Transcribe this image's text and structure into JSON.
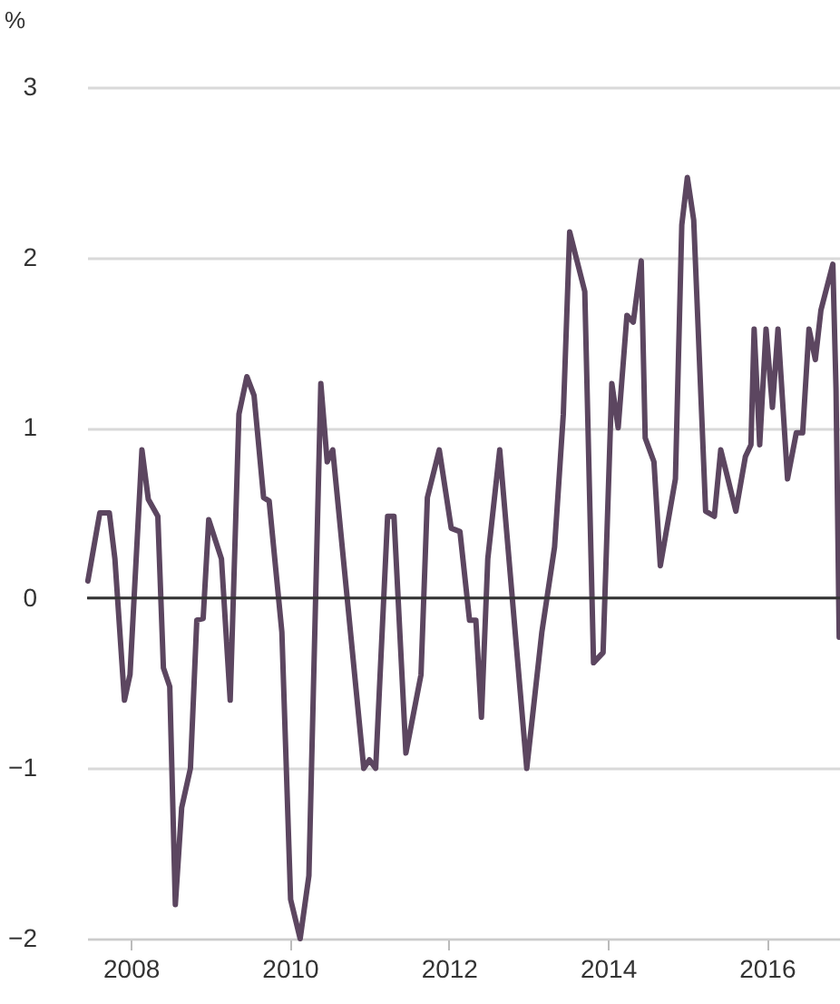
{
  "chart_data": {
    "type": "line",
    "ylabel": "%",
    "x": [
      2007.46,
      2007.61,
      2007.73,
      2007.8,
      2007.92,
      2007.99,
      2008.14,
      2008.22,
      2008.34,
      2008.41,
      2008.49,
      2008.56,
      2008.64,
      2008.75,
      2008.83,
      2008.91,
      2008.98,
      2009.14,
      2009.25,
      2009.36,
      2009.46,
      2009.55,
      2009.67,
      2009.74,
      2009.9,
      2010.01,
      2010.13,
      2010.24,
      2010.39,
      2010.47,
      2010.54,
      2010.93,
      2011.0,
      2011.08,
      2011.23,
      2011.31,
      2011.46,
      2011.65,
      2011.73,
      2011.88,
      2012.03,
      2012.14,
      2012.26,
      2012.34,
      2012.41,
      2012.49,
      2012.64,
      2012.98,
      2013.17,
      2013.33,
      2013.44,
      2013.52,
      2013.71,
      2013.82,
      2013.94,
      2014.05,
      2014.13,
      2014.24,
      2014.32,
      2014.42,
      2014.47,
      2014.58,
      2014.66,
      2014.85,
      2014.93,
      2015.0,
      2015.08,
      2015.23,
      2015.34,
      2015.42,
      2015.5,
      2015.61,
      2015.73,
      2015.8,
      2015.84,
      2015.91,
      2015.99,
      2016.07,
      2016.14,
      2016.26,
      2016.37,
      2016.45,
      2016.53,
      2016.61,
      2016.68,
      2016.83,
      2016.87,
      2016.91
    ],
    "series": [
      {
        "color": "#5c4660",
        "values": [
          0.1,
          0.5,
          0.5,
          0.23,
          -0.6,
          -0.45,
          0.87,
          0.58,
          0.48,
          -0.41,
          -0.52,
          -1.8,
          -1.23,
          -1.0,
          -0.13,
          -0.12,
          0.46,
          0.23,
          -0.6,
          1.08,
          1.3,
          1.19,
          0.59,
          0.57,
          -0.2,
          -1.77,
          -2.0,
          -1.63,
          1.26,
          0.8,
          0.87,
          -1.0,
          -0.95,
          -1.0,
          0.48,
          0.48,
          -0.91,
          -0.45,
          0.59,
          0.87,
          0.41,
          0.39,
          -0.13,
          -0.13,
          -0.7,
          0.23,
          0.87,
          -1.0,
          -0.2,
          0.3,
          1.08,
          2.15,
          1.8,
          -0.38,
          -0.32,
          1.26,
          1.0,
          1.66,
          1.62,
          1.98,
          0.94,
          0.8,
          0.19,
          0.7,
          2.19,
          2.47,
          2.22,
          0.51,
          0.48,
          0.87,
          0.72,
          0.51,
          0.83,
          0.9,
          1.58,
          0.9,
          1.58,
          1.12,
          1.58,
          0.7,
          0.97,
          0.97,
          1.58,
          1.4,
          1.69,
          1.96,
          1.23,
          -0.23
        ]
      }
    ],
    "xlim": [
      2007.45,
      2016.92
    ],
    "xticks": [
      2008,
      2010,
      2012,
      2014,
      2016
    ],
    "ylim": [
      -2,
      3
    ],
    "yticks": [
      -2,
      -1,
      0,
      1,
      2,
      3
    ],
    "grid": "y",
    "ref_lines": [
      {
        "axis": "y",
        "value": 0,
        "color": "#333333"
      }
    ]
  }
}
